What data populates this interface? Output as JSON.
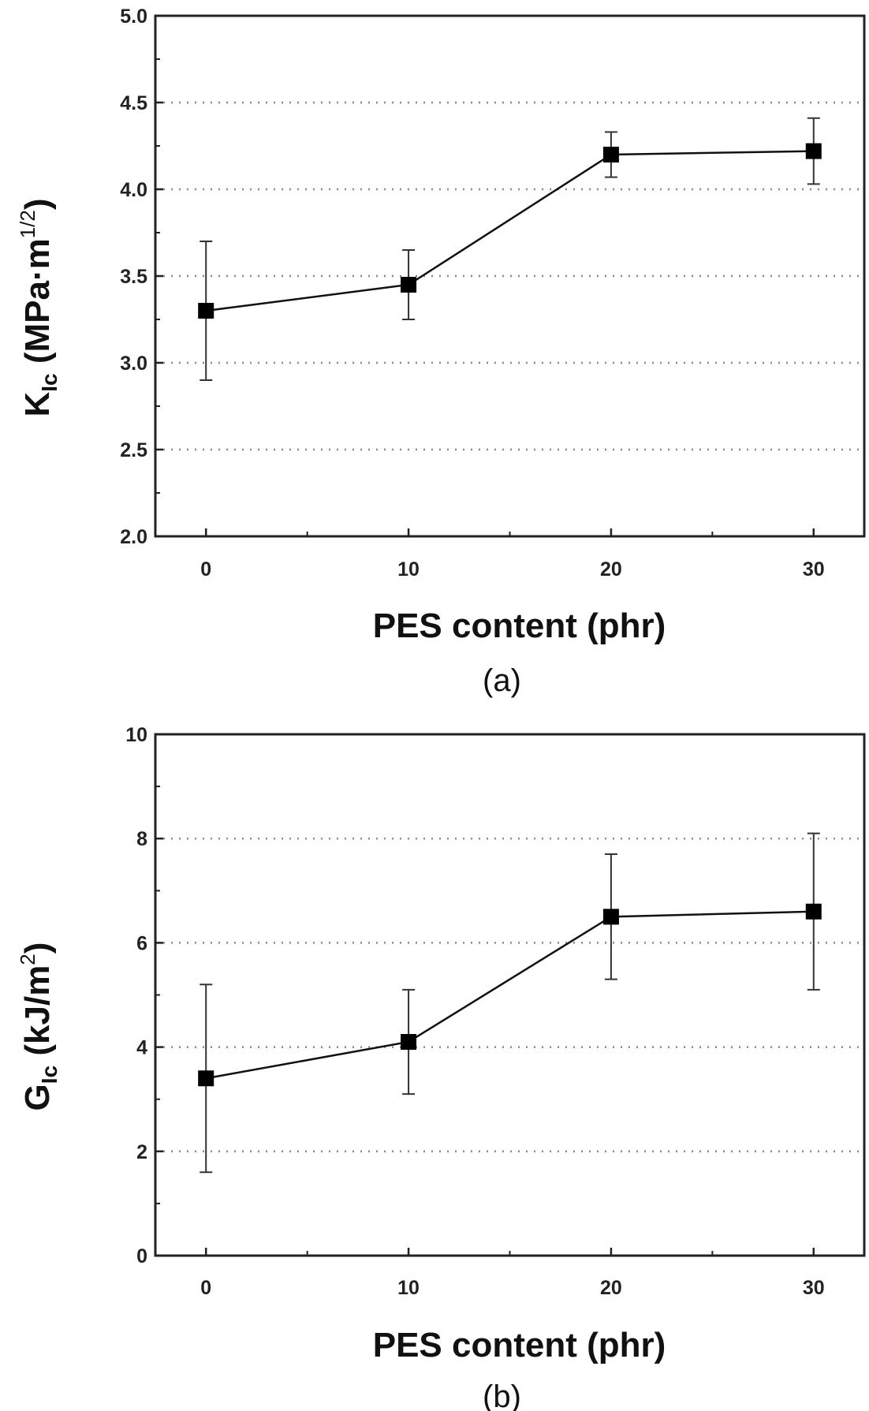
{
  "chart_data": [
    {
      "type": "line",
      "panel_label": "(a)",
      "xlabel": "PES content (phr)",
      "ylabel": {
        "main": "K",
        "sub": "Ic",
        "unit_prefix": " (MPa·m",
        "sup": "1/2",
        "unit_suffix": ")"
      },
      "x": [
        0,
        10,
        20,
        30
      ],
      "y": [
        3.3,
        3.45,
        4.2,
        4.22
      ],
      "yerr_low": [
        2.9,
        3.25,
        4.07,
        4.03
      ],
      "yerr_high": [
        3.7,
        3.65,
        4.33,
        4.41
      ],
      "xlim": [
        -2.5,
        32.5
      ],
      "ylim": [
        2.0,
        5.0
      ],
      "xticks": [
        "0",
        "10",
        "20",
        "30"
      ],
      "xtick_values": [
        0,
        10,
        20,
        30
      ],
      "yticks": [
        "2.0",
        "2.5",
        "3.0",
        "3.5",
        "4.0",
        "4.5",
        "5.0"
      ],
      "ytick_values": [
        2.0,
        2.5,
        3.0,
        3.5,
        4.0,
        4.5,
        5.0
      ],
      "grid_values": [
        2.5,
        3.0,
        3.5,
        4.0,
        4.5
      ],
      "grid": "horizontal dotted",
      "marker": "square"
    },
    {
      "type": "line",
      "panel_label": "(b)",
      "xlabel": "PES content (phr)",
      "ylabel": {
        "main": "G",
        "sub": "Ic",
        "unit_prefix": " (kJ/m",
        "sup": "2",
        "unit_suffix": ")"
      },
      "x": [
        0,
        10,
        20,
        30
      ],
      "y": [
        3.4,
        4.1,
        6.5,
        6.6
      ],
      "yerr_low": [
        1.6,
        3.1,
        5.3,
        5.1
      ],
      "yerr_high": [
        5.2,
        5.1,
        7.7,
        8.1
      ],
      "xlim": [
        -2.5,
        32.5
      ],
      "ylim": [
        0,
        10
      ],
      "xticks": [
        "0",
        "10",
        "20",
        "30"
      ],
      "xtick_values": [
        0,
        10,
        20,
        30
      ],
      "yticks": [
        "0",
        "2",
        "4",
        "6",
        "8",
        "10"
      ],
      "ytick_values": [
        0,
        2,
        4,
        6,
        8,
        10
      ],
      "grid_values": [
        2,
        4,
        6,
        8
      ],
      "grid": "horizontal dotted",
      "marker": "square"
    }
  ]
}
